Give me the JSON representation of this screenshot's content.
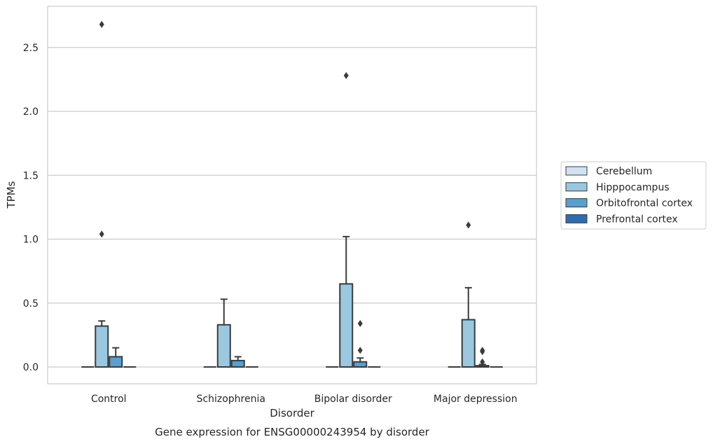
{
  "chart_data": {
    "type": "box",
    "xlabel": "Disorder",
    "ylabel": "TPMs",
    "caption": "Gene expression for ENSG00000243954 by disorder",
    "categories": [
      "Control",
      "Schizophrenia",
      "Bipolar disorder",
      "Major depression"
    ],
    "ylim": [
      -0.13,
      2.83
    ],
    "yticks": [
      {
        "value": 0.0,
        "label": "0.0"
      },
      {
        "value": 0.5,
        "label": "0.5"
      },
      {
        "value": 1.0,
        "label": "1.0"
      },
      {
        "value": 1.5,
        "label": "1.5"
      },
      {
        "value": 2.0,
        "label": "2.0"
      },
      {
        "value": 2.5,
        "label": "2.5"
      }
    ],
    "grid": "horizontal",
    "legend_position": "right",
    "series": [
      {
        "name": "Cerebellum",
        "color": "#d1e2f2",
        "boxes": [
          {
            "q1": 0,
            "median": 0,
            "q3": 0,
            "whisker_low": 0,
            "whisker_high": 0,
            "outliers": []
          },
          {
            "q1": 0,
            "median": 0,
            "q3": 0,
            "whisker_low": 0,
            "whisker_high": 0,
            "outliers": []
          },
          {
            "q1": 0,
            "median": 0,
            "q3": 0,
            "whisker_low": 0,
            "whisker_high": 0,
            "outliers": []
          },
          {
            "q1": 0,
            "median": 0,
            "q3": 0,
            "whisker_low": 0,
            "whisker_high": 0,
            "outliers": []
          }
        ]
      },
      {
        "name": "Hipppocampus",
        "color": "#9ac8e0",
        "boxes": [
          {
            "q1": 0,
            "median": 0,
            "q3": 0.32,
            "whisker_low": 0,
            "whisker_high": 0.36,
            "outliers": [
              1.04,
              2.68
            ]
          },
          {
            "q1": 0,
            "median": 0,
            "q3": 0.33,
            "whisker_low": 0,
            "whisker_high": 0.53,
            "outliers": []
          },
          {
            "q1": 0,
            "median": 0,
            "q3": 0.65,
            "whisker_low": 0,
            "whisker_high": 1.02,
            "outliers": [
              2.28
            ]
          },
          {
            "q1": 0,
            "median": 0,
            "q3": 0.37,
            "whisker_low": 0,
            "whisker_high": 0.62,
            "outliers": [
              1.11
            ]
          }
        ]
      },
      {
        "name": "Orbitofrontal cortex",
        "color": "#5a9fcd",
        "boxes": [
          {
            "q1": 0,
            "median": 0,
            "q3": 0.08,
            "whisker_low": 0,
            "whisker_high": 0.15,
            "outliers": []
          },
          {
            "q1": 0,
            "median": 0,
            "q3": 0.05,
            "whisker_low": 0,
            "whisker_high": 0.08,
            "outliers": []
          },
          {
            "q1": 0,
            "median": 0,
            "q3": 0.04,
            "whisker_low": 0,
            "whisker_high": 0.07,
            "outliers": [
              0.13,
              0.34
            ]
          },
          {
            "q1": 0,
            "median": 0,
            "q3": 0.01,
            "whisker_low": 0,
            "whisker_high": 0.02,
            "outliers": [
              0.04,
              0.12,
              0.13
            ]
          }
        ]
      },
      {
        "name": "Prefrontal cortex",
        "color": "#2d6daf",
        "boxes": [
          {
            "q1": 0,
            "median": 0,
            "q3": 0,
            "whisker_low": 0,
            "whisker_high": 0,
            "outliers": []
          },
          {
            "q1": 0,
            "median": 0,
            "q3": 0,
            "whisker_low": 0,
            "whisker_high": 0,
            "outliers": []
          },
          {
            "q1": 0,
            "median": 0,
            "q3": 0,
            "whisker_low": 0,
            "whisker_high": 0,
            "outliers": []
          },
          {
            "q1": 0,
            "median": 0,
            "q3": 0,
            "whisker_low": 0,
            "whisker_high": 0,
            "outliers": []
          }
        ]
      }
    ]
  }
}
